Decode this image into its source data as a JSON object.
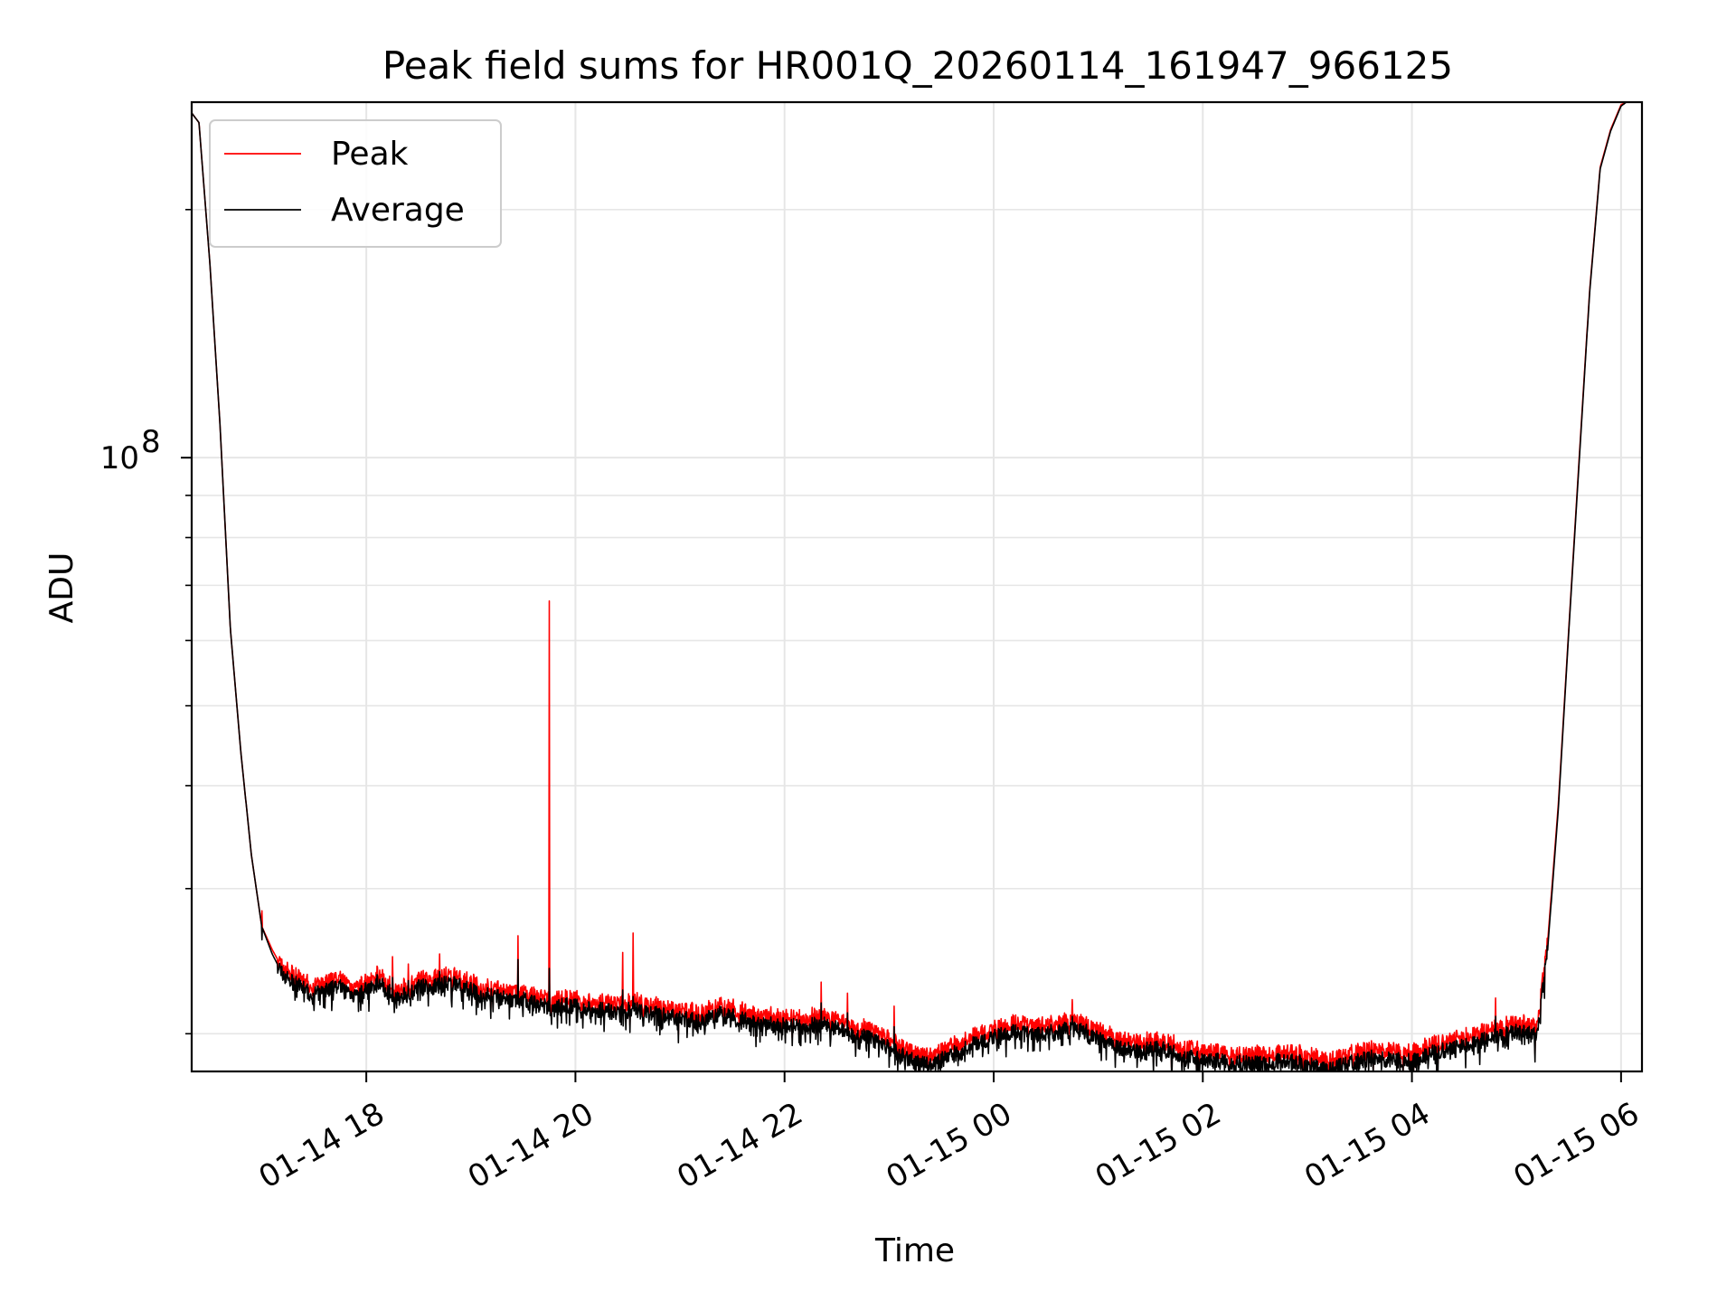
{
  "chart_data": {
    "type": "line",
    "title": "Peak field sums for HR001Q_20260114_161947_966125",
    "xlabel": "Time",
    "ylabel": "ADU",
    "yscale": "log",
    "ylim": [
      18000000,
      270000000
    ],
    "xlim_hours": [
      16.33,
      30.2
    ],
    "grid": true,
    "legend_position": "top-left",
    "x_ticks": [
      {
        "hour": 18,
        "label": "01-14 18"
      },
      {
        "hour": 20,
        "label": "01-14 20"
      },
      {
        "hour": 22,
        "label": "01-14 22"
      },
      {
        "hour": 24,
        "label": "01-15 00"
      },
      {
        "hour": 26,
        "label": "01-15 02"
      },
      {
        "hour": 28,
        "label": "01-15 04"
      },
      {
        "hour": 30,
        "label": "01-15 06"
      }
    ],
    "y_major_ticks": [
      {
        "value": 100000000,
        "base": "10",
        "exp": "8"
      }
    ],
    "y_minor_ticks": [
      20000000,
      30000000,
      40000000,
      50000000,
      60000000,
      70000000,
      80000000,
      90000000,
      200000000
    ],
    "series": [
      {
        "name": "Peak",
        "color": "#ff0000",
        "x_hours": [
          16.33,
          16.4,
          16.5,
          16.6,
          16.7,
          16.8,
          16.9,
          17.0,
          17.1,
          17.2,
          17.3,
          17.4,
          17.5,
          17.6,
          17.7,
          17.8,
          17.9,
          18.0,
          18.1,
          18.2,
          18.3,
          18.4,
          18.5,
          18.6,
          18.7,
          18.8,
          18.9,
          19.0,
          19.1,
          19.2,
          19.3,
          19.4,
          19.5,
          19.6,
          19.7,
          19.8,
          19.9,
          20.0,
          20.2,
          20.4,
          20.6,
          20.8,
          21.0,
          21.2,
          21.4,
          21.6,
          21.8,
          22.0,
          22.2,
          22.4,
          22.6,
          22.8,
          23.0,
          23.2,
          23.4,
          23.6,
          23.8,
          24.0,
          24.2,
          24.4,
          24.6,
          24.8,
          25.0,
          25.2,
          25.4,
          25.6,
          25.8,
          26.0,
          26.2,
          26.4,
          26.6,
          26.8,
          27.0,
          27.2,
          27.4,
          27.6,
          27.8,
          28.0,
          28.2,
          28.4,
          28.6,
          28.8,
          29.0,
          29.2,
          29.3,
          29.4,
          29.5,
          29.6,
          29.7,
          29.8,
          29.9,
          30.0,
          30.05
        ],
        "values_M": [
          262,
          255,
          175,
          110,
          62,
          44,
          33,
          27,
          25.3,
          24.0,
          23.5,
          23.1,
          22.7,
          22.9,
          23.3,
          23.0,
          22.6,
          23.0,
          23.6,
          23.0,
          22.5,
          22.8,
          23.3,
          23.1,
          23.3,
          23.5,
          23.3,
          23.0,
          22.8,
          22.6,
          22.5,
          22.3,
          22.4,
          22.2,
          22.0,
          21.8,
          22.1,
          22.0,
          21.8,
          21.6,
          21.9,
          21.5,
          21.3,
          21.1,
          21.6,
          21.2,
          20.9,
          20.9,
          20.8,
          21.0,
          20.4,
          20.2,
          19.6,
          19.0,
          18.7,
          19.3,
          19.8,
          20.2,
          20.5,
          20.3,
          20.6,
          20.7,
          20.2,
          19.6,
          19.5,
          19.6,
          19.2,
          19.0,
          18.9,
          18.8,
          18.8,
          19.0,
          18.8,
          18.5,
          18.8,
          19.1,
          19.0,
          18.9,
          19.4,
          19.6,
          19.9,
          20.3,
          20.5,
          20.3,
          26,
          38,
          62,
          100,
          160,
          225,
          250,
          268,
          270
        ]
      },
      {
        "name": "Average",
        "color": "#000000",
        "x_hours": [
          16.33,
          16.4,
          16.5,
          16.6,
          16.7,
          16.8,
          16.9,
          17.0,
          17.1,
          17.2,
          17.3,
          17.4,
          17.5,
          17.6,
          17.7,
          17.8,
          17.9,
          18.0,
          18.1,
          18.2,
          18.3,
          18.4,
          18.5,
          18.6,
          18.7,
          18.8,
          18.9,
          19.0,
          19.1,
          19.2,
          19.3,
          19.4,
          19.5,
          19.6,
          19.7,
          19.8,
          19.9,
          20.0,
          20.2,
          20.4,
          20.6,
          20.8,
          21.0,
          21.2,
          21.4,
          21.6,
          21.8,
          22.0,
          22.2,
          22.4,
          22.6,
          22.8,
          23.0,
          23.2,
          23.4,
          23.6,
          23.8,
          24.0,
          24.2,
          24.4,
          24.6,
          24.8,
          25.0,
          25.2,
          25.4,
          25.6,
          25.8,
          26.0,
          26.2,
          26.4,
          26.6,
          26.8,
          27.0,
          27.2,
          27.4,
          27.6,
          27.8,
          28.0,
          28.2,
          28.4,
          28.6,
          28.8,
          29.0,
          29.2,
          29.3,
          29.4,
          29.5,
          29.6,
          29.7,
          29.8,
          29.9,
          30.0,
          30.05
        ],
        "values_M": [
          262,
          255,
          175,
          110,
          62,
          44,
          33,
          27,
          25.0,
          23.6,
          23.1,
          22.7,
          22.3,
          22.5,
          22.9,
          22.6,
          22.2,
          22.6,
          23.2,
          22.6,
          22.1,
          22.4,
          22.9,
          22.7,
          22.9,
          23.1,
          22.9,
          22.6,
          22.4,
          22.2,
          22.1,
          21.9,
          22.0,
          21.8,
          21.6,
          21.4,
          21.7,
          21.6,
          21.4,
          21.2,
          21.5,
          21.1,
          20.9,
          20.7,
          21.2,
          20.8,
          20.5,
          20.5,
          20.4,
          20.6,
          20.0,
          19.8,
          19.2,
          18.6,
          18.3,
          18.9,
          19.4,
          19.8,
          20.1,
          19.9,
          20.2,
          20.3,
          19.8,
          19.2,
          19.1,
          19.2,
          18.8,
          18.6,
          18.5,
          18.4,
          18.4,
          18.6,
          18.4,
          18.1,
          18.4,
          18.7,
          18.6,
          18.5,
          19.0,
          19.2,
          19.5,
          19.9,
          20.1,
          19.9,
          25.5,
          37.5,
          61.5,
          99,
          159,
          224,
          249,
          267,
          270
        ]
      }
    ],
    "spikes": [
      {
        "hour": 17.0,
        "peak_M": 28.2,
        "avg_M": 26.0
      },
      {
        "hour": 18.25,
        "peak_M": 24.8,
        "avg_M": 23.4
      },
      {
        "hour": 18.4,
        "peak_M": 24.3,
        "avg_M": 23.2
      },
      {
        "hour": 18.7,
        "peak_M": 25.0,
        "avg_M": 23.8
      },
      {
        "hour": 19.45,
        "peak_M": 26.3,
        "avg_M": 24.6
      },
      {
        "hour": 19.75,
        "peak_M": 67.0,
        "avg_M": 24.0
      },
      {
        "hour": 20.45,
        "peak_M": 25.1,
        "avg_M": 22.6
      },
      {
        "hour": 20.55,
        "peak_M": 26.5,
        "avg_M": 22.2
      },
      {
        "hour": 22.35,
        "peak_M": 23.1,
        "avg_M": 21.8
      },
      {
        "hour": 22.6,
        "peak_M": 22.4,
        "avg_M": 21.2
      },
      {
        "hour": 23.05,
        "peak_M": 21.6,
        "avg_M": 20.4
      },
      {
        "hour": 24.75,
        "peak_M": 22.0,
        "avg_M": 21.0
      },
      {
        "hour": 28.8,
        "peak_M": 22.1,
        "avg_M": 21.0
      }
    ]
  }
}
